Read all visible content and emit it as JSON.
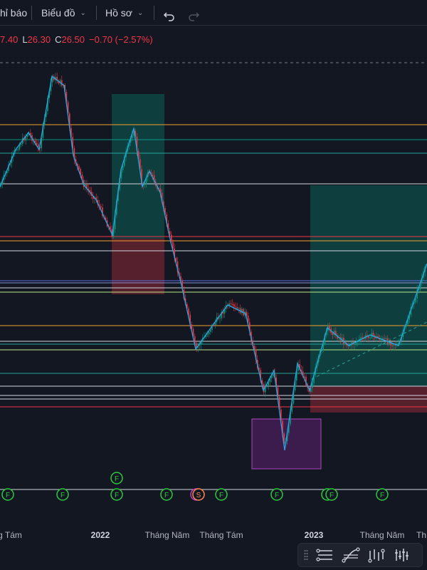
{
  "toolbar": {
    "indicators_label": "hỉ báo",
    "chart_label": "Biểu đồ",
    "profile_label": "Hồ sơ"
  },
  "ohlc": {
    "high": "7.40",
    "low_label": "L",
    "low": "26.30",
    "close_label": "C",
    "close": "26.50",
    "change": "−0.70 (−2.57%)"
  },
  "colors": {
    "background": "#131722",
    "up": "#089981",
    "down": "#f23645",
    "zigzag": "#2aa5e0",
    "orange_line": "#f0a030",
    "event_marker": "#2ec840",
    "split_marker": "#ff8a50"
  },
  "events": {
    "earnings_letter": "F",
    "split_letter": "S"
  },
  "time_axis": {
    "labels": [
      "g Tám",
      "2022",
      "Tháng Năm",
      "Tháng Tám",
      "2023",
      "Tháng Năm",
      "Th"
    ]
  },
  "drawing_toolbar": {
    "tools": [
      "grip-icon",
      "horizontal-lines-icon",
      "fib-tool-icon",
      "path-tool-icon",
      "bars-tool-icon"
    ]
  }
}
